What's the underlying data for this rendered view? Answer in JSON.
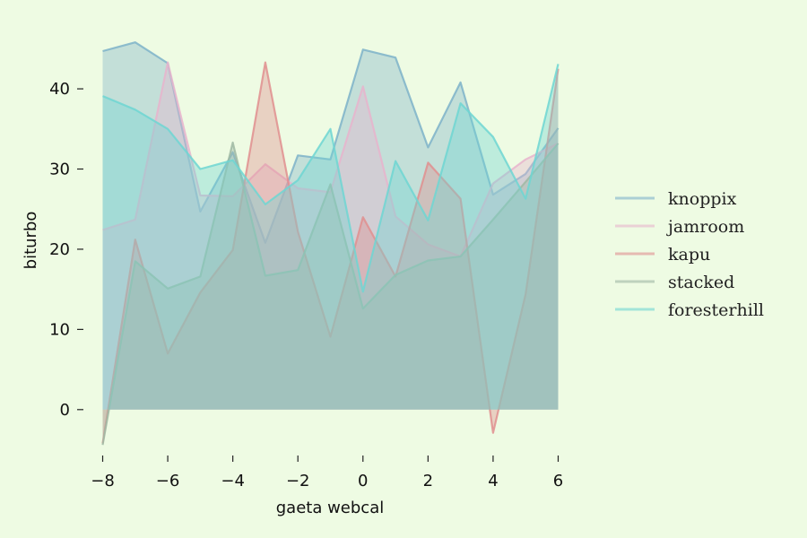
{
  "chart_data": {
    "type": "area",
    "xlabel": "gaeta webcal",
    "ylabel": "biturbo",
    "xlim": [
      -8.4,
      6.4
    ],
    "ylim": [
      -5.5,
      47.5
    ],
    "xticks": [
      -8,
      -6,
      -4,
      -2,
      0,
      2,
      4,
      6
    ],
    "yticks": [
      0,
      10,
      20,
      30,
      40
    ],
    "x": [
      -8,
      -7,
      -6,
      -5,
      -4,
      -3,
      -2,
      -1,
      0,
      1,
      2,
      3,
      4,
      5,
      6
    ],
    "series": [
      {
        "name": "knoppix",
        "color": "#7eb3c9",
        "values": [
          44.7,
          45.8,
          43.2,
          24.7,
          32.1,
          20.8,
          31.7,
          31.2,
          44.9,
          43.9,
          32.7,
          40.8,
          26.8,
          29.4,
          35.1
        ]
      },
      {
        "name": "jamroom",
        "color": "#e8b4cc",
        "values": [
          22.4,
          23.7,
          43.3,
          26.7,
          26.6,
          30.6,
          27.6,
          27.1,
          40.3,
          24.1,
          20.6,
          19.1,
          28.2,
          31.2,
          33.2
        ]
      },
      {
        "name": "kapu",
        "color": "#e08f8f",
        "values": [
          -4.2,
          21.2,
          7.0,
          14.6,
          19.9,
          43.3,
          22.2,
          9.1,
          24.0,
          16.6,
          30.8,
          26.3,
          -2.9,
          14.4,
          42.5
        ]
      },
      {
        "name": "stacked",
        "color": "#9fb8a3",
        "values": [
          -4.4,
          18.5,
          15.1,
          16.6,
          33.3,
          16.7,
          17.4,
          28.1,
          12.6,
          16.8,
          18.6,
          19.1,
          23.7,
          28.4,
          33.2
        ]
      },
      {
        "name": "foresterhill",
        "color": "#6fd6d2",
        "values": [
          39.1,
          37.4,
          35.0,
          30.0,
          31.1,
          25.6,
          28.6,
          35.0,
          14.7,
          31.0,
          23.6,
          38.2,
          34.0,
          26.3,
          43.1
        ]
      }
    ],
    "legend_position": "right",
    "grid": false
  }
}
